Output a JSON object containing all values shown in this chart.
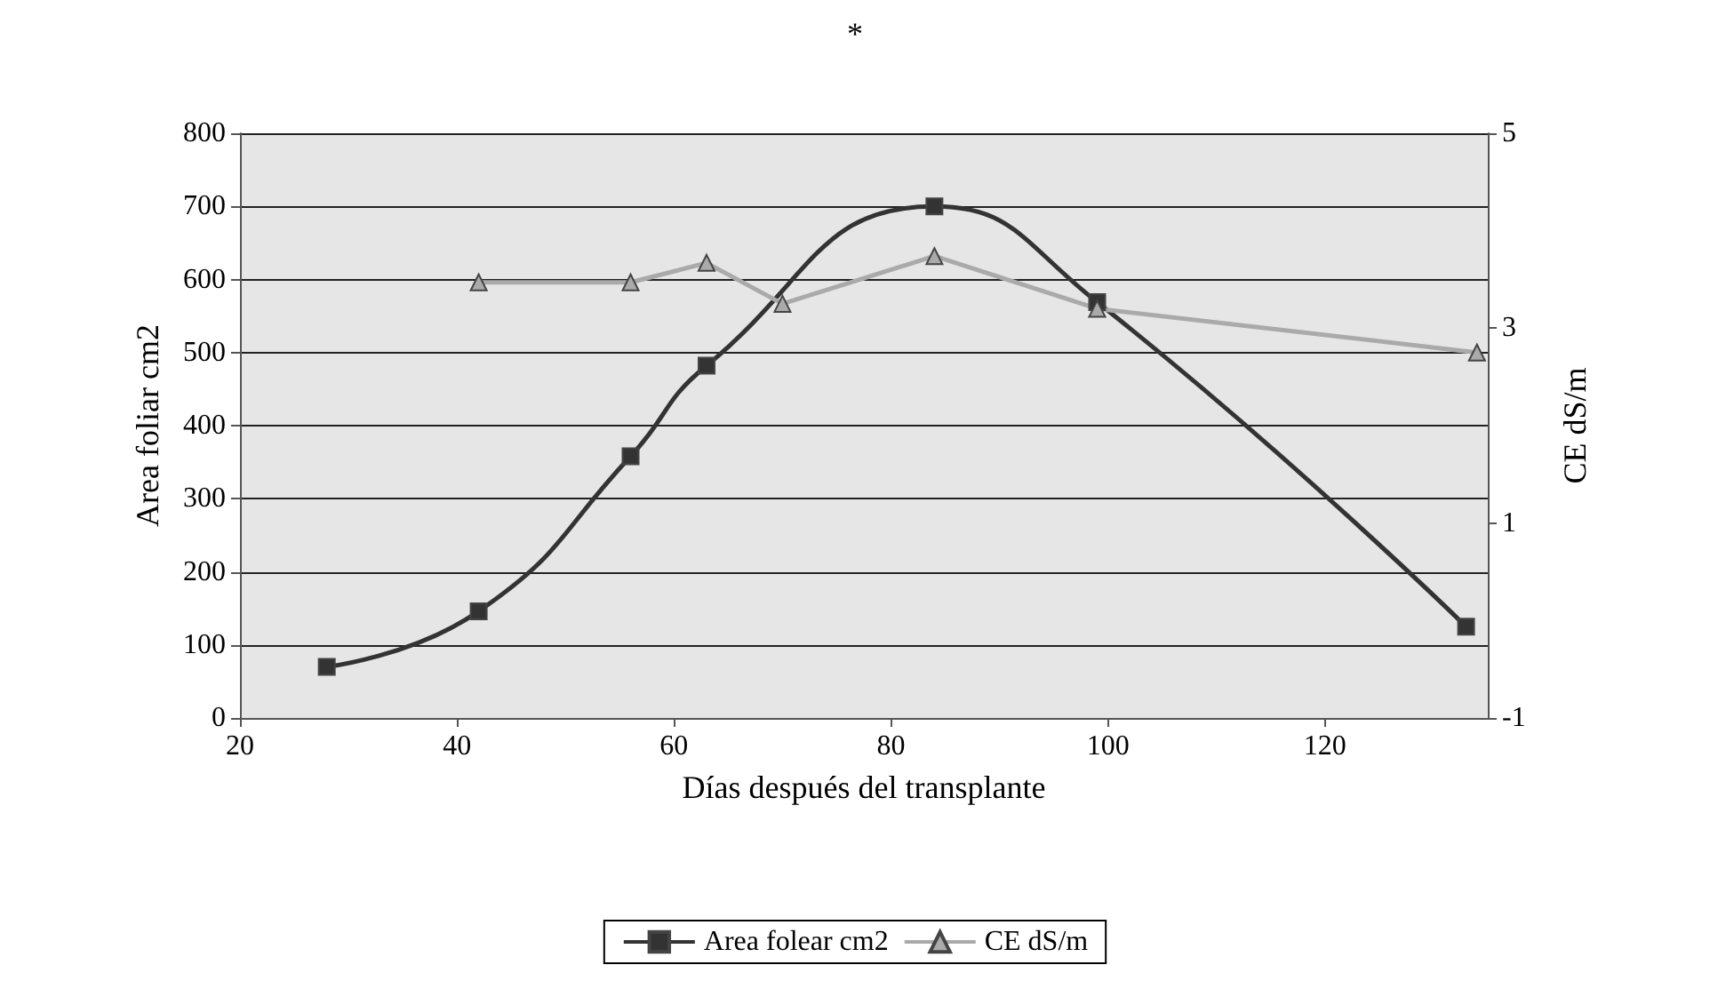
{
  "chart_data": {
    "type": "line",
    "title": "*",
    "xlabel": "Días después del transplante",
    "ylabel": "Area foliar cm2",
    "y2label": "CE dS/m",
    "xlim": [
      20,
      135
    ],
    "xticks": [
      20,
      40,
      60,
      80,
      100,
      120
    ],
    "ylim": [
      0,
      800
    ],
    "yticks": [
      0,
      100,
      200,
      300,
      400,
      500,
      600,
      700,
      800
    ],
    "y2lim": [
      -1,
      5
    ],
    "y2ticks": [
      -1,
      1,
      3,
      5
    ],
    "grid": "y",
    "legend": "bottom",
    "series": [
      {
        "name": "Area folear cm2",
        "color": "#333333",
        "marker": "square",
        "x": [
          28,
          42,
          56,
          63,
          84,
          99,
          133
        ],
        "values": [
          70,
          146,
          358,
          482,
          700,
          569,
          125
        ]
      },
      {
        "name": "CE dS/m",
        "color": "#aaaaaa",
        "marker": "triangle",
        "axis": "y2",
        "x": [
          42,
          56,
          63,
          70,
          84,
          99,
          134
        ],
        "values": [
          3.47,
          3.47,
          3.67,
          3.25,
          3.74,
          3.2,
          2.75
        ]
      }
    ]
  }
}
